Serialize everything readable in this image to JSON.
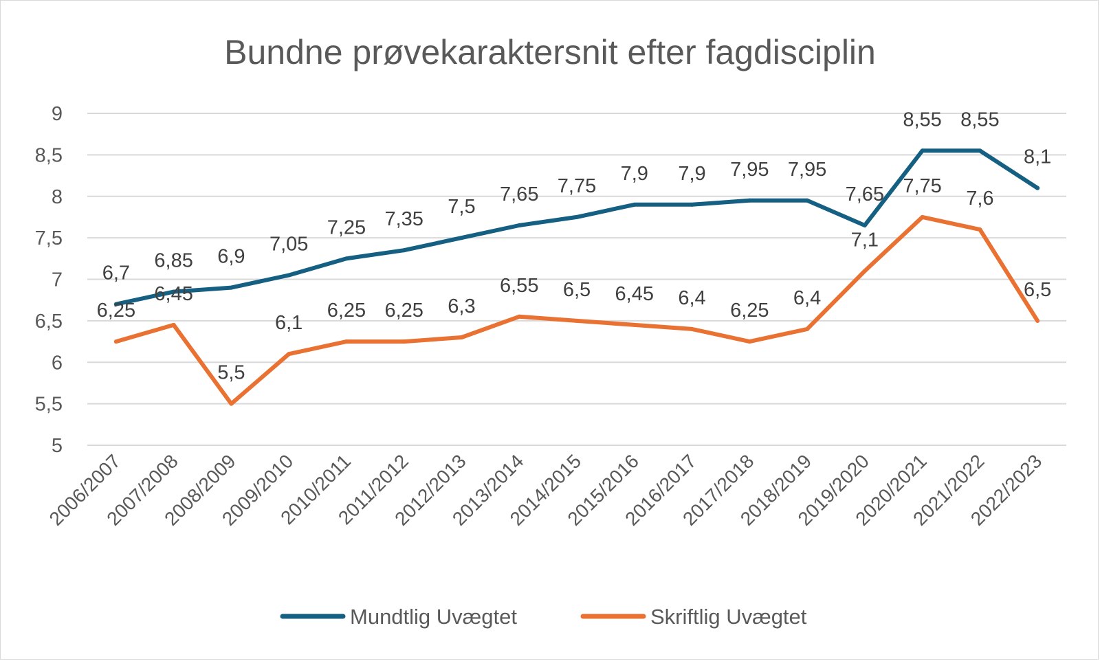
{
  "chart_data": {
    "type": "line",
    "title": "Bundne prøvekaraktersnit efter fagdisciplin",
    "xlabel": "",
    "ylabel": "",
    "ylim": [
      5,
      9
    ],
    "yticks": [
      "5",
      "5,5",
      "6",
      "6,5",
      "7",
      "7,5",
      "8",
      "8,5",
      "9"
    ],
    "ytick_values": [
      5,
      5.5,
      6,
      6.5,
      7,
      7.5,
      8,
      8.5,
      9
    ],
    "grid": true,
    "legend_position": "bottom",
    "categories": [
      "2006/2007",
      "2007/2008",
      "2008/2009",
      "2009/2010",
      "2010/2011",
      "2011/2012",
      "2012/2013",
      "2013/2014",
      "2014/2015",
      "2015/2016",
      "2016/2017",
      "2017/2018",
      "2018/2019",
      "2019/2020",
      "2020/2021",
      "2021/2022",
      "2022/2023"
    ],
    "series": [
      {
        "name": "Mundtlig Uvægtet",
        "color": "#156082",
        "values": [
          6.7,
          6.85,
          6.9,
          7.05,
          7.25,
          7.35,
          7.5,
          7.65,
          7.75,
          7.9,
          7.9,
          7.95,
          7.95,
          7.65,
          8.55,
          8.55,
          8.1
        ],
        "labels": [
          "6,7",
          "6,85",
          "6,9",
          "7,05",
          "7,25",
          "7,35",
          "7,5",
          "7,65",
          "7,75",
          "7,9",
          "7,9",
          "7,95",
          "7,95",
          "7,65",
          "8,55",
          "8,55",
          "8,1"
        ]
      },
      {
        "name": "Skriftlig Uvægtet",
        "color": "#E97132",
        "values": [
          6.25,
          6.45,
          5.5,
          6.1,
          6.25,
          6.25,
          6.3,
          6.55,
          6.5,
          6.45,
          6.4,
          6.25,
          6.4,
          7.1,
          7.75,
          7.6,
          6.5
        ],
        "labels": [
          "6,25",
          "6,45",
          "5,5",
          "6,1",
          "6,25",
          "6,25",
          "6,3",
          "6,55",
          "6,5",
          "6,45",
          "6,4",
          "6,25",
          "6,4",
          "7,1",
          "7,75",
          "7,6",
          "6,5"
        ]
      }
    ]
  }
}
